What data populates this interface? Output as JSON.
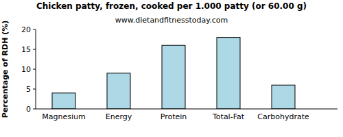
{
  "chart_data": {
    "type": "bar",
    "title": "Chicken patty, frozen, cooked per 1.000 patty (or 60.00 g)",
    "subtitle": "www.dietandfitnesstoday.com",
    "y_label": "Percentage of RDH (%)",
    "categories": [
      "Magnesium",
      "Energy",
      "Protein",
      "Total-Fat",
      "Carbohydrate"
    ],
    "values": [
      4,
      9,
      16,
      18,
      6
    ],
    "color": "#add8e6",
    "ylim": [
      0,
      20
    ],
    "yticks": [
      0,
      5,
      10,
      15,
      20
    ],
    "grid": false
  }
}
